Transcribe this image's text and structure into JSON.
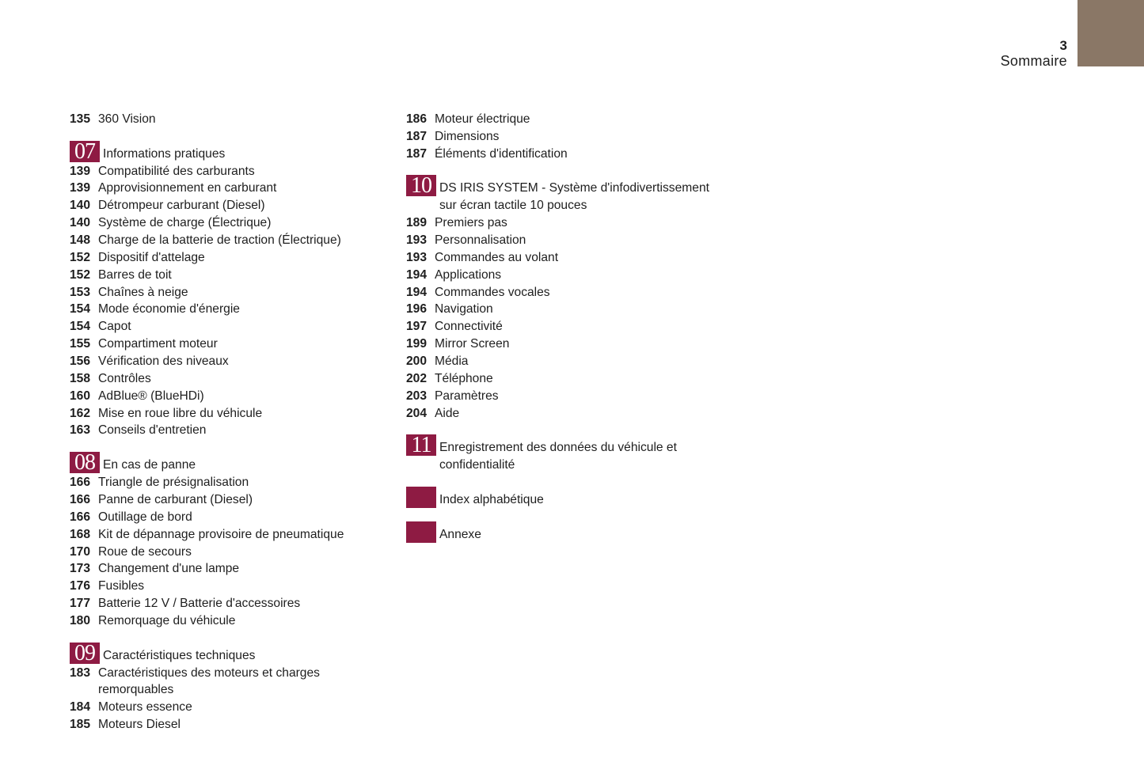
{
  "header": {
    "page_number": "3",
    "title": "Sommaire",
    "tab_color": "#8a7766"
  },
  "accent_color": "#8e1b43",
  "left": [
    {
      "number": null,
      "title": null,
      "items": [
        {
          "page": "135",
          "title": "360 Vision"
        }
      ]
    },
    {
      "number": "07",
      "title": "Informations pratiques",
      "items": [
        {
          "page": "139",
          "title": "Compatibilité des carburants"
        },
        {
          "page": "139",
          "title": "Approvisionnement en carburant"
        },
        {
          "page": "140",
          "title": "Détrompeur carburant (Diesel)"
        },
        {
          "page": "140",
          "title": "Système de charge (Électrique)"
        },
        {
          "page": "148",
          "title": "Charge de la batterie de traction (Électrique)"
        },
        {
          "page": "152",
          "title": "Dispositif d'attelage"
        },
        {
          "page": "152",
          "title": "Barres de toit"
        },
        {
          "page": "153",
          "title": "Chaînes à neige"
        },
        {
          "page": "154",
          "title": "Mode économie d'énergie"
        },
        {
          "page": "154",
          "title": "Capot"
        },
        {
          "page": "155",
          "title": "Compartiment moteur"
        },
        {
          "page": "156",
          "title": "Vérification des niveaux"
        },
        {
          "page": "158",
          "title": "Contrôles"
        },
        {
          "page": "160",
          "title": "AdBlue® (BlueHDi)"
        },
        {
          "page": "162",
          "title": "Mise en roue libre du véhicule"
        },
        {
          "page": "163",
          "title": "Conseils d'entretien"
        }
      ]
    },
    {
      "number": "08",
      "title": "En cas de panne",
      "items": [
        {
          "page": "166",
          "title": "Triangle de présignalisation"
        },
        {
          "page": "166",
          "title": "Panne de carburant (Diesel)"
        },
        {
          "page": "166",
          "title": "Outillage de bord"
        },
        {
          "page": "168",
          "title": "Kit de dépannage provisoire de pneumatique"
        },
        {
          "page": "170",
          "title": "Roue de secours"
        },
        {
          "page": "173",
          "title": "Changement d'une lampe"
        },
        {
          "page": "176",
          "title": "Fusibles"
        },
        {
          "page": "177",
          "title": "Batterie 12 V / Batterie d'accessoires"
        },
        {
          "page": "180",
          "title": "Remorquage du véhicule"
        }
      ]
    },
    {
      "number": "09",
      "title": "Caractéristiques techniques",
      "items": [
        {
          "page": "183",
          "title": "Caractéristiques des moteurs et charges\nremorquables"
        },
        {
          "page": "184",
          "title": "Moteurs essence"
        },
        {
          "page": "185",
          "title": "Moteurs Diesel"
        }
      ]
    }
  ],
  "right": [
    {
      "number": null,
      "title": null,
      "items": [
        {
          "page": "186",
          "title": "Moteur électrique"
        },
        {
          "page": "187",
          "title": "Dimensions"
        },
        {
          "page": "187",
          "title": "Éléments d'identification"
        }
      ]
    },
    {
      "number": "10",
      "title": "DS IRIS SYSTEM - Système d'infodivertissement\nsur écran tactile 10 pouces",
      "items": [
        {
          "page": "189",
          "title": "Premiers pas"
        },
        {
          "page": "193",
          "title": "Personnalisation"
        },
        {
          "page": "193",
          "title": "Commandes au volant"
        },
        {
          "page": "194",
          "title": "Applications"
        },
        {
          "page": "194",
          "title": "Commandes vocales"
        },
        {
          "page": "196",
          "title": "Navigation"
        },
        {
          "page": "197",
          "title": "Connectivité"
        },
        {
          "page": "199",
          "title": "Mirror Screen"
        },
        {
          "page": "200",
          "title": "Média"
        },
        {
          "page": "202",
          "title": "Téléphone"
        },
        {
          "page": "203",
          "title": "Paramètres"
        },
        {
          "page": "204",
          "title": "Aide"
        }
      ]
    },
    {
      "number": "11",
      "title": "Enregistrement des données du véhicule et\nconfidentialité",
      "items": []
    },
    {
      "number": "",
      "title": "Index alphabétique",
      "items": []
    },
    {
      "number": "",
      "title": "Annexe",
      "items": []
    }
  ]
}
